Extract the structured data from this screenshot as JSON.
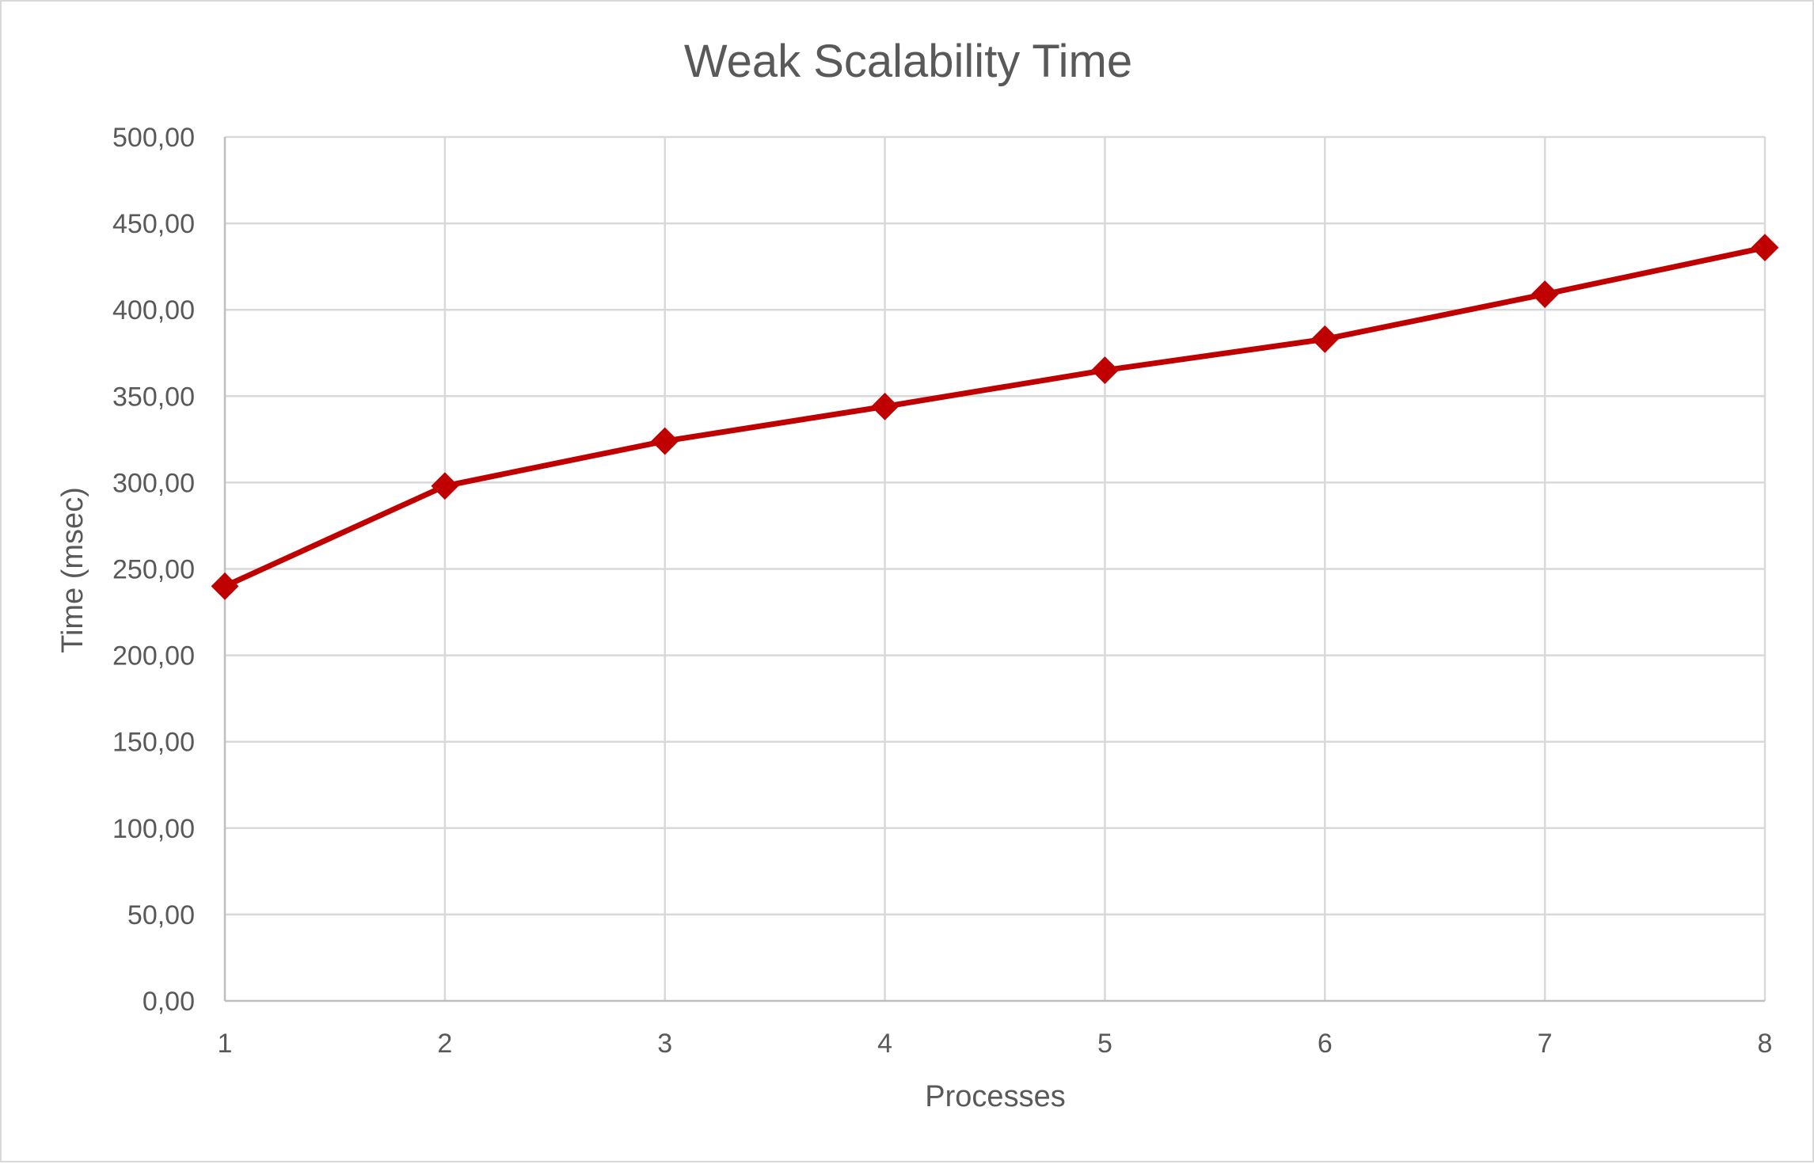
{
  "chart_data": {
    "type": "line",
    "title": "Weak Scalability Time",
    "xlabel": "Processes",
    "ylabel": "Time (msec)",
    "x": [
      1,
      2,
      3,
      4,
      5,
      6,
      7,
      8
    ],
    "x_tick_labels": [
      "1",
      "2",
      "3",
      "4",
      "5",
      "6",
      "7",
      "8"
    ],
    "ylim": [
      0,
      500
    ],
    "y_ticks": [
      0,
      50,
      100,
      150,
      200,
      250,
      300,
      350,
      400,
      450,
      500
    ],
    "y_tick_labels": [
      "0,00",
      "50,00",
      "100,00",
      "150,00",
      "200,00",
      "250,00",
      "300,00",
      "350,00",
      "400,00",
      "450,00",
      "500,00"
    ],
    "grid": true,
    "legend": "none",
    "series": [
      {
        "color": "#c00000",
        "marker": "diamond",
        "values": [
          240,
          298,
          324,
          344,
          365,
          383,
          409,
          436
        ]
      }
    ]
  }
}
